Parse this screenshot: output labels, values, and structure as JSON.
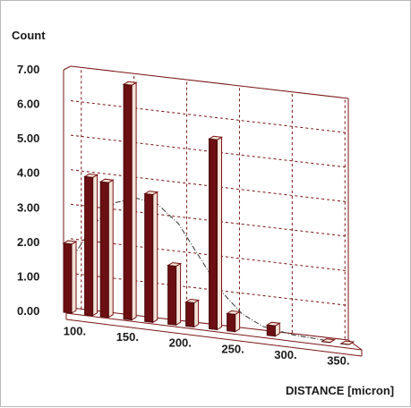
{
  "chart_data": {
    "type": "bar",
    "style": "3d-histogram",
    "ylabel": "Count",
    "xlabel": "DISTANCE [micron]",
    "y_ticks": [
      "0.00",
      "1.00",
      "2.00",
      "3.00",
      "4.00",
      "5.00",
      "6.00",
      "7.00"
    ],
    "x_ticks": [
      "100.",
      "150.",
      "200.",
      "250.",
      "300.",
      "350."
    ],
    "y_range": [
      0,
      7
    ],
    "x_range": [
      90,
      360
    ],
    "grid": true,
    "bar_color": "#6b0f12",
    "bar_side_color": "#f3e3d8",
    "bars": [
      {
        "x": 90,
        "value": 2.0
      },
      {
        "x": 110,
        "value": 4.0
      },
      {
        "x": 125,
        "value": 3.9
      },
      {
        "x": 147,
        "value": 6.8
      },
      {
        "x": 167,
        "value": 3.7
      },
      {
        "x": 189,
        "value": 1.7
      },
      {
        "x": 206,
        "value": 0.7
      },
      {
        "x": 228,
        "value": 5.5
      },
      {
        "x": 245,
        "value": 0.5
      },
      {
        "x": 283,
        "value": 0.3
      },
      {
        "x": 335,
        "value": 0.0
      },
      {
        "x": 353,
        "value": 0.0
      }
    ],
    "fit_curve": {
      "label": "",
      "points": [
        [
          90,
          1.6
        ],
        [
          110,
          2.6
        ],
        [
          130,
          3.3
        ],
        [
          150,
          3.5
        ],
        [
          170,
          3.4
        ],
        [
          190,
          2.9
        ],
        [
          210,
          2.0
        ],
        [
          230,
          1.1
        ],
        [
          250,
          0.5
        ],
        [
          270,
          0.2
        ],
        [
          300,
          0.05
        ],
        [
          330,
          0.0
        ]
      ]
    }
  }
}
